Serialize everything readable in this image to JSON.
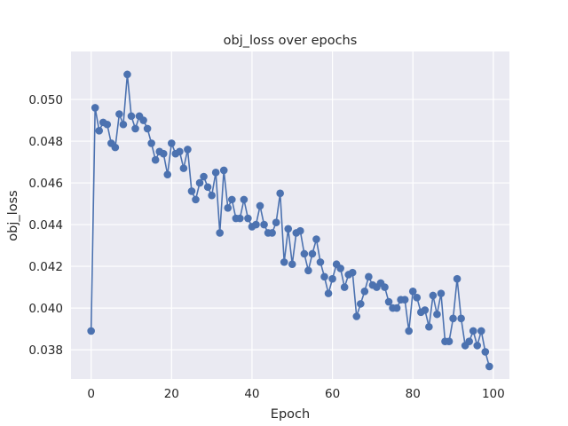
{
  "chart_data": {
    "type": "line",
    "title": "obj_loss over epochs",
    "xlabel": "Epoch",
    "ylabel": "obj_loss",
    "xlim": [
      -5,
      104
    ],
    "ylim": [
      0.0366,
      0.0523
    ],
    "grid": true,
    "legend": "none",
    "x_ticks": [
      {
        "value": 0,
        "label": "0"
      },
      {
        "value": 20,
        "label": "20"
      },
      {
        "value": 40,
        "label": "40"
      },
      {
        "value": 60,
        "label": "60"
      },
      {
        "value": 80,
        "label": "80"
      },
      {
        "value": 100,
        "label": "100"
      }
    ],
    "y_ticks": [
      {
        "value": 0.038,
        "label": "0.038"
      },
      {
        "value": 0.04,
        "label": "0.040"
      },
      {
        "value": 0.042,
        "label": "0.042"
      },
      {
        "value": 0.044,
        "label": "0.044"
      },
      {
        "value": 0.046,
        "label": "0.046"
      },
      {
        "value": 0.048,
        "label": "0.048"
      },
      {
        "value": 0.05,
        "label": "0.050"
      }
    ],
    "colors": {
      "line": "#4c72b0",
      "plot_bg": "#eaeaf2",
      "grid": "#ffffff"
    },
    "series": [
      {
        "x": [
          0,
          1,
          2,
          3,
          4,
          5,
          6,
          7,
          8,
          9,
          10,
          11,
          12,
          13,
          14,
          15,
          16,
          17,
          18,
          19,
          20,
          21,
          22,
          23,
          24,
          25,
          26,
          27,
          28,
          29,
          30,
          31,
          32,
          33,
          34,
          35,
          36,
          37,
          38,
          39,
          40,
          41,
          42,
          43,
          44,
          45,
          46,
          47,
          48,
          49,
          50,
          51,
          52,
          53,
          54,
          55,
          56,
          57,
          58,
          59,
          60,
          61,
          62,
          63,
          64,
          65,
          66,
          67,
          68,
          69,
          70,
          71,
          72,
          73,
          74,
          75,
          76,
          77,
          78,
          79,
          80,
          81,
          82,
          83,
          84,
          85,
          86,
          87,
          88,
          89,
          90,
          91,
          92,
          93,
          94,
          95,
          96,
          97,
          98,
          99
        ],
        "values": [
          0.0389,
          0.0496,
          0.0485,
          0.0489,
          0.0488,
          0.0479,
          0.0477,
          0.0493,
          0.0488,
          0.0512,
          0.0492,
          0.0486,
          0.0492,
          0.049,
          0.0486,
          0.0479,
          0.0471,
          0.0475,
          0.0474,
          0.0464,
          0.0479,
          0.0474,
          0.0475,
          0.0467,
          0.0476,
          0.0456,
          0.0452,
          0.046,
          0.0463,
          0.0458,
          0.0454,
          0.0465,
          0.0436,
          0.0466,
          0.0448,
          0.0452,
          0.0443,
          0.0443,
          0.0452,
          0.0443,
          0.0439,
          0.044,
          0.0449,
          0.044,
          0.0436,
          0.0436,
          0.0441,
          0.0455,
          0.0422,
          0.0438,
          0.0421,
          0.0436,
          0.0437,
          0.0426,
          0.0418,
          0.0426,
          0.0433,
          0.0422,
          0.0415,
          0.0407,
          0.0414,
          0.0421,
          0.0419,
          0.041,
          0.0416,
          0.0417,
          0.0396,
          0.0402,
          0.0408,
          0.0415,
          0.0411,
          0.041,
          0.0412,
          0.041,
          0.0403,
          0.04,
          0.04,
          0.0404,
          0.0404,
          0.0389,
          0.0408,
          0.0405,
          0.0398,
          0.0399,
          0.0391,
          0.0406,
          0.0397,
          0.0407,
          0.0384,
          0.0384,
          0.0395,
          0.0414,
          0.0395,
          0.0382,
          0.0384,
          0.0389,
          0.0382,
          0.0389,
          0.0379,
          0.0372
        ]
      }
    ]
  }
}
